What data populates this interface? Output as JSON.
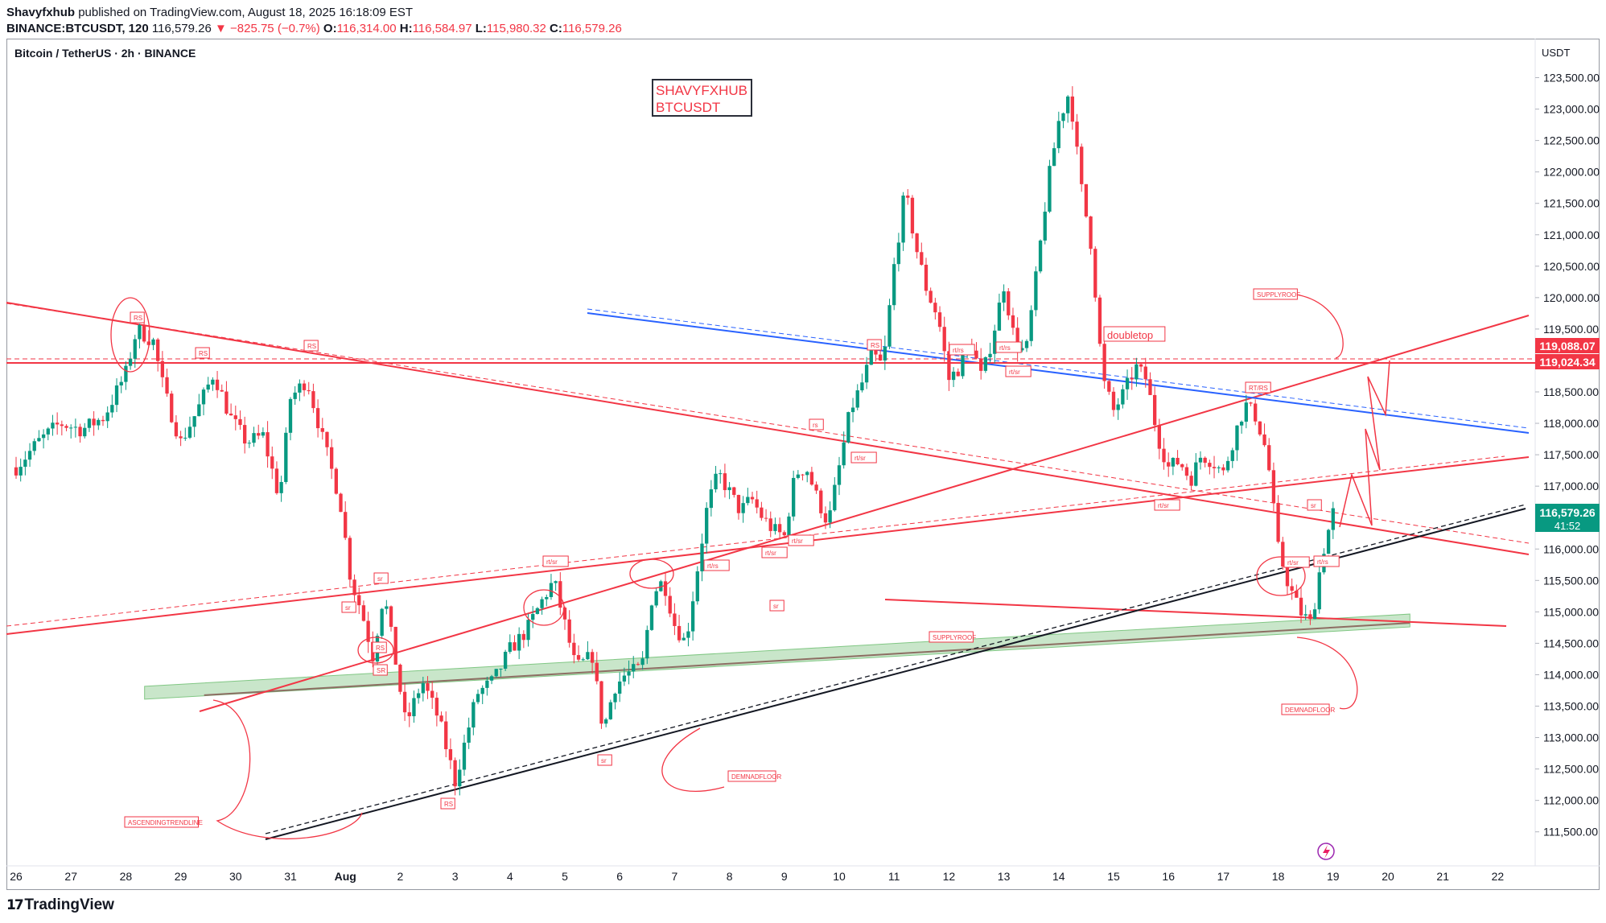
{
  "header": {
    "line1_user": "Shavyfxhub",
    "line1_rest": " published on TradingView.com, August 18, 2025 16:18:09 EST",
    "line2_symbol": "BINANCE:BTCUSDT, 120",
    "line2_price": " 116,579.26 ",
    "line2_change": "▼ −825.75 (−0.7%)",
    "o_label": " O:",
    "o_val": "116,314.00",
    "h_label": " H:",
    "h_val": "116,584.97",
    "l_label": " L:",
    "l_val": "115,980.32",
    "c_label": " C:",
    "c_val": "116,579.26"
  },
  "chart_title": "Bitcoin / TetherUS · 2h · BINANCE",
  "unit_label": "USDT",
  "watermark": {
    "line1": "SHAVYFXHUB",
    "line2": "BTCUSDT"
  },
  "footer": {
    "logo": "TradingView"
  },
  "colors": {
    "bull": "#089981",
    "bear": "#f23645",
    "blue": "#2962ff",
    "zone": "#a5d6a7"
  },
  "chart_data": {
    "type": "candlestick",
    "symbol": "BTCUSDT",
    "interval": "2h",
    "y_range": [
      111200,
      124200
    ],
    "y_ticks": [
      111500,
      112000,
      112500,
      113000,
      113500,
      114000,
      114500,
      115000,
      115500,
      116000,
      116500,
      117000,
      117500,
      118000,
      118500,
      119000,
      119500,
      120000,
      120500,
      121000,
      121500,
      122000,
      122500,
      123000,
      123500
    ],
    "x_ticks": [
      {
        "label": "26",
        "day": 0
      },
      {
        "label": "27",
        "day": 1
      },
      {
        "label": "28",
        "day": 2
      },
      {
        "label": "29",
        "day": 3
      },
      {
        "label": "30",
        "day": 4
      },
      {
        "label": "31",
        "day": 5
      },
      {
        "label": "Aug",
        "day": 6
      },
      {
        "label": "2",
        "day": 7
      },
      {
        "label": "3",
        "day": 8
      },
      {
        "label": "4",
        "day": 9
      },
      {
        "label": "5",
        "day": 10
      },
      {
        "label": "6",
        "day": 11
      },
      {
        "label": "7",
        "day": 12
      },
      {
        "label": "8",
        "day": 13
      },
      {
        "label": "9",
        "day": 14
      },
      {
        "label": "10",
        "day": 15
      },
      {
        "label": "11",
        "day": 16
      },
      {
        "label": "12",
        "day": 17
      },
      {
        "label": "13",
        "day": 18
      },
      {
        "label": "14",
        "day": 19
      },
      {
        "label": "15",
        "day": 20
      },
      {
        "label": "16",
        "day": 21
      },
      {
        "label": "17",
        "day": 22
      },
      {
        "label": "18",
        "day": 23
      },
      {
        "label": "19",
        "day": 24
      },
      {
        "label": "20",
        "day": 25
      },
      {
        "label": "21",
        "day": 26
      },
      {
        "label": "22",
        "day": 27
      }
    ],
    "close_path": [
      [
        0.0,
        117300
      ],
      [
        0.4,
        117700
      ],
      [
        0.8,
        118000
      ],
      [
        1.2,
        117900
      ],
      [
        1.6,
        118100
      ],
      [
        2.0,
        118800
      ],
      [
        2.2,
        119500
      ],
      [
        2.5,
        119300
      ],
      [
        2.7,
        118500
      ],
      [
        3.0,
        117700
      ],
      [
        3.3,
        118200
      ],
      [
        3.6,
        118800
      ],
      [
        3.9,
        118100
      ],
      [
        4.2,
        117700
      ],
      [
        4.5,
        117800
      ],
      [
        4.8,
        116800
      ],
      [
        5.0,
        118400
      ],
      [
        5.3,
        118700
      ],
      [
        5.6,
        117700
      ],
      [
        5.9,
        116800
      ],
      [
        6.1,
        115500
      ],
      [
        6.3,
        115000
      ],
      [
        6.5,
        114300
      ],
      [
        6.7,
        115300
      ],
      [
        6.9,
        114300
      ],
      [
        7.1,
        113200
      ],
      [
        7.4,
        113900
      ],
      [
        7.7,
        113300
      ],
      [
        8.0,
        112300
      ],
      [
        8.2,
        113000
      ],
      [
        8.4,
        113700
      ],
      [
        8.7,
        113900
      ],
      [
        9.0,
        114400
      ],
      [
        9.3,
        114700
      ],
      [
        9.6,
        115200
      ],
      [
        9.8,
        115500
      ],
      [
        10.0,
        114800
      ],
      [
        10.2,
        114100
      ],
      [
        10.5,
        114300
      ],
      [
        10.7,
        113100
      ],
      [
        10.9,
        113800
      ],
      [
        11.1,
        114000
      ],
      [
        11.4,
        114100
      ],
      [
        11.6,
        115300
      ],
      [
        11.8,
        115500
      ],
      [
        12.0,
        114800
      ],
      [
        12.2,
        114500
      ],
      [
        12.4,
        115600
      ],
      [
        12.6,
        116700
      ],
      [
        12.8,
        117200
      ],
      [
        13.0,
        116900
      ],
      [
        13.2,
        116600
      ],
      [
        13.4,
        116800
      ],
      [
        13.6,
        116500
      ],
      [
        13.8,
        116300
      ],
      [
        14.0,
        116200
      ],
      [
        14.2,
        117200
      ],
      [
        14.4,
        117300
      ],
      [
        14.6,
        116800
      ],
      [
        14.8,
        116400
      ],
      [
        15.0,
        117300
      ],
      [
        15.2,
        118200
      ],
      [
        15.4,
        118600
      ],
      [
        15.6,
        119100
      ],
      [
        15.8,
        118900
      ],
      [
        16.0,
        120500
      ],
      [
        16.2,
        121700
      ],
      [
        16.4,
        120800
      ],
      [
        16.6,
        120100
      ],
      [
        16.8,
        119700
      ],
      [
        17.0,
        118700
      ],
      [
        17.2,
        118900
      ],
      [
        17.4,
        119300
      ],
      [
        17.6,
        118700
      ],
      [
        17.8,
        119400
      ],
      [
        18.0,
        120200
      ],
      [
        18.2,
        119300
      ],
      [
        18.4,
        119100
      ],
      [
        18.6,
        120400
      ],
      [
        18.8,
        121800
      ],
      [
        19.0,
        122800
      ],
      [
        19.2,
        123300
      ],
      [
        19.4,
        121800
      ],
      [
        19.6,
        120800
      ],
      [
        19.8,
        118700
      ],
      [
        20.0,
        118200
      ],
      [
        20.2,
        118500
      ],
      [
        20.4,
        118900
      ],
      [
        20.6,
        118700
      ],
      [
        20.8,
        117800
      ],
      [
        21.0,
        117300
      ],
      [
        21.2,
        117400
      ],
      [
        21.4,
        117100
      ],
      [
        21.6,
        117500
      ],
      [
        21.8,
        117400
      ],
      [
        22.0,
        117200
      ],
      [
        22.2,
        117800
      ],
      [
        22.4,
        118300
      ],
      [
        22.6,
        118100
      ],
      [
        22.8,
        117500
      ],
      [
        23.0,
        116000
      ],
      [
        23.2,
        115400
      ],
      [
        23.4,
        115000
      ],
      [
        23.6,
        114800
      ],
      [
        23.8,
        115900
      ],
      [
        24.0,
        116579
      ]
    ],
    "horizontal_levels": [
      {
        "label": "119,088.07",
        "value": 119088.07,
        "style": "dashed"
      },
      {
        "label": "119,024.34",
        "value": 119024.34,
        "style": "solid"
      }
    ],
    "last_price": {
      "label": "116,579.26",
      "countdown": "41:52",
      "value": 116579.26
    },
    "zone": {
      "from": [
        2.4,
        113700
      ],
      "to": [
        25.4,
        114850
      ],
      "label": "DEMNADFLOOR"
    },
    "annotations": {
      "doubletop": "doubletop",
      "supplyroof": "SUPPLYROOF",
      "demandfloor": "DEMNADFLOOR",
      "ascending": "ASCENDINGTRENDLINE",
      "small_labels": [
        "RS",
        "RS",
        "RS",
        "RS",
        "rt/rs",
        "rs",
        "RS",
        "rt/sr",
        "rt/rs",
        "rt/rs",
        "rt/sr",
        "rt/sr",
        "rt/sr",
        "rt/sr",
        "rt/sr",
        "sr",
        "sr",
        "SR",
        "RS",
        "sr",
        "sr",
        "sr",
        "rt/sr",
        "RT/RS",
        "rt/rs"
      ]
    }
  }
}
